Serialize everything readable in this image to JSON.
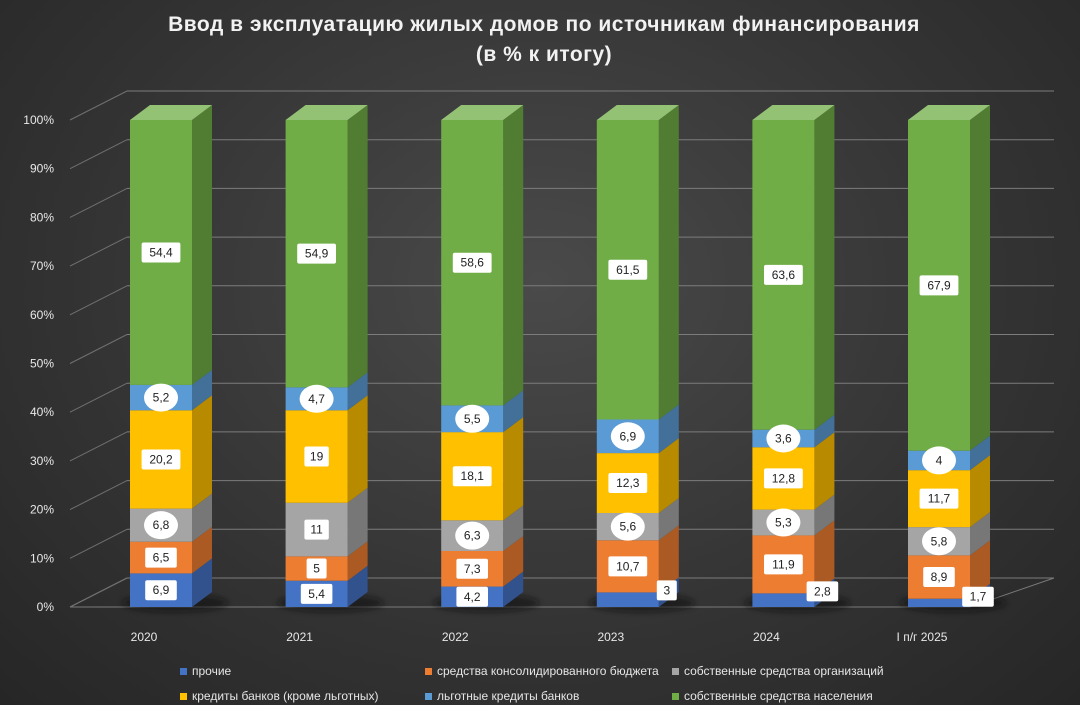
{
  "chart_data": {
    "type": "bar",
    "stacked": true,
    "percent_stacked": true,
    "title_lines": [
      "Ввод в эксплуатацию жилых домов по источникам финансирования",
      "(в % к итогу)"
    ],
    "categories": [
      "2020",
      "2021",
      "2022",
      "2023",
      "2024",
      "I п/г 2025"
    ],
    "y_ticks": [
      "0%",
      "10%",
      "20%",
      "30%",
      "40%",
      "50%",
      "60%",
      "70%",
      "80%",
      "90%",
      "100%"
    ],
    "ylim": [
      0,
      100
    ],
    "legend_position": "bottom",
    "series": [
      {
        "name": "прочие",
        "color": "#4472c4",
        "values": [
          6.9,
          5.4,
          4.2,
          3,
          2.8,
          1.7
        ],
        "labels": [
          "6,9",
          "5,4",
          "4,2",
          "3",
          "2,8",
          "1,7"
        ]
      },
      {
        "name": "средства консолидированного бюджета",
        "color": "#ed7d31",
        "values": [
          6.5,
          5,
          7.3,
          10.7,
          11.9,
          8.9
        ],
        "labels": [
          "6,5",
          "5",
          "7,3",
          "10,7",
          "11,9",
          "8,9"
        ]
      },
      {
        "name": "собственные средства организаций",
        "color": "#a5a5a5",
        "values": [
          6.8,
          11,
          6.3,
          5.6,
          5.3,
          5.8
        ],
        "labels": [
          "6,8",
          "11",
          "6,3",
          "5,6",
          "5,3",
          "5,8"
        ]
      },
      {
        "name": "кредиты банков (кроме льготных)",
        "color": "#ffc000",
        "values": [
          20.2,
          19,
          18.1,
          12.3,
          12.8,
          11.7
        ],
        "labels": [
          "20,2",
          "19",
          "18,1",
          "12,3",
          "12,8",
          "11,7"
        ]
      },
      {
        "name": "льготные кредиты банков",
        "color": "#5b9bd5",
        "values": [
          5.2,
          4.7,
          5.5,
          6.9,
          3.6,
          4
        ],
        "labels": [
          "5,2",
          "4,7",
          "5,5",
          "6,9",
          "3,6",
          "4"
        ]
      },
      {
        "name": "собственные средства населения",
        "color": "#70ad47",
        "values": [
          54.4,
          54.9,
          58.6,
          61.5,
          63.6,
          67.9
        ],
        "labels": [
          "54,4",
          "54,9",
          "58,6",
          "61,5",
          "63,6",
          "67,9"
        ]
      }
    ]
  }
}
